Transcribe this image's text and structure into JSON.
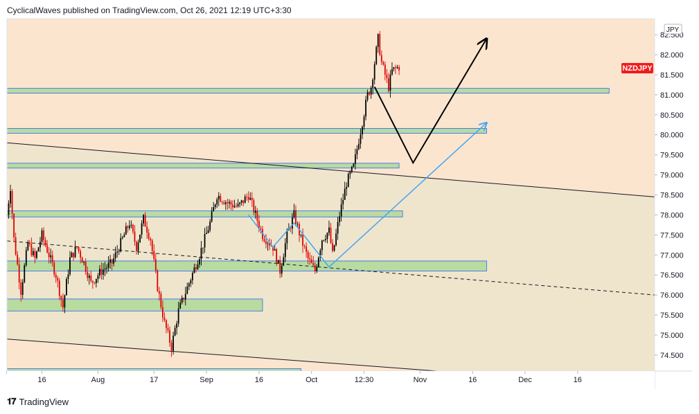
{
  "header": {
    "publisher": "CyclicalWaves published on TradingView.com, Oct 26, 2021 12:19 UTC+3:30"
  },
  "footer": {
    "brand": "TradingView",
    "logo_icon": "tradingview-logo-icon"
  },
  "colors": {
    "background_upper": "#fce5cf",
    "background_channel": "#efe5cc",
    "zone_fill": "#b8dba0",
    "zone_border": "#2962ff",
    "candle_up": "#000000",
    "candle_down": "#e00000",
    "arrow_black": "#000000",
    "arrow_blue": "#42a5f5",
    "badge_bg": "#f21b1b"
  },
  "chart_data": {
    "type": "candlestick",
    "symbol_label": "NZDJPY",
    "currency_label": "JPY",
    "y_ticks": [
      "82.500",
      "82.000",
      "81.500",
      "81.000",
      "80.500",
      "80.000",
      "79.500",
      "79.000",
      "78.500",
      "78.000",
      "77.500",
      "77.000",
      "76.500",
      "76.000",
      "75.500",
      "75.000",
      "74.500"
    ],
    "ylim": [
      74.1,
      82.9
    ],
    "x_ticks": [
      "16",
      "Aug",
      "17",
      "Sep",
      "16",
      "Oct",
      "12:30",
      "Nov",
      "16",
      "Dec",
      "16"
    ],
    "price_path": [
      [
        "2021-07-06",
        78.0
      ],
      [
        "2021-07-07",
        78.7
      ],
      [
        "2021-07-08",
        77.4
      ],
      [
        "2021-07-10",
        76.1
      ],
      [
        "2021-07-12",
        77.3
      ],
      [
        "2021-07-14",
        76.9
      ],
      [
        "2021-07-16",
        77.5
      ],
      [
        "2021-07-18",
        77.0
      ],
      [
        "2021-07-20",
        76.5
      ],
      [
        "2021-07-22",
        75.7
      ],
      [
        "2021-07-24",
        76.9
      ],
      [
        "2021-07-26",
        77.2
      ],
      [
        "2021-07-28",
        76.8
      ],
      [
        "2021-07-30",
        76.3
      ],
      [
        "2021-08-02",
        76.6
      ],
      [
        "2021-08-05",
        76.8
      ],
      [
        "2021-08-08",
        77.4
      ],
      [
        "2021-08-10",
        77.8
      ],
      [
        "2021-08-12",
        77.2
      ],
      [
        "2021-08-14",
        77.9
      ],
      [
        "2021-08-16",
        77.4
      ],
      [
        "2021-08-18",
        76.2
      ],
      [
        "2021-08-20",
        75.3
      ],
      [
        "2021-08-22",
        74.7
      ],
      [
        "2021-08-24",
        75.6
      ],
      [
        "2021-08-27",
        76.3
      ],
      [
        "2021-08-30",
        77.0
      ],
      [
        "2021-09-02",
        77.8
      ],
      [
        "2021-09-04",
        78.5
      ],
      [
        "2021-09-07",
        78.3
      ],
      [
        "2021-09-10",
        78.2
      ],
      [
        "2021-09-13",
        78.5
      ],
      [
        "2021-09-15",
        78.0
      ],
      [
        "2021-09-17",
        77.5
      ],
      [
        "2021-09-20",
        77.2
      ],
      [
        "2021-09-22",
        76.6
      ],
      [
        "2021-09-24",
        77.5
      ],
      [
        "2021-09-26",
        78.0
      ],
      [
        "2021-09-28",
        77.4
      ],
      [
        "2021-09-30",
        76.9
      ],
      [
        "2021-10-02",
        76.6
      ],
      [
        "2021-10-04",
        77.4
      ],
      [
        "2021-10-06",
        77.6
      ],
      [
        "2021-10-07",
        77.0
      ],
      [
        "2021-10-09",
        78.0
      ],
      [
        "2021-10-11",
        78.8
      ],
      [
        "2021-10-13",
        79.2
      ],
      [
        "2021-10-15",
        80.1
      ],
      [
        "2021-10-17",
        81.0
      ],
      [
        "2021-10-18",
        81.2
      ],
      [
        "2021-10-20",
        82.4
      ],
      [
        "2021-10-21",
        81.8
      ],
      [
        "2021-10-23",
        81.2
      ],
      [
        "2021-10-24",
        81.6
      ],
      [
        "2021-10-26",
        81.7
      ]
    ],
    "support_resistance_zones": [
      {
        "low": 81.05,
        "high": 81.15,
        "start": "2021-07-06",
        "end": "2021-12-25"
      },
      {
        "low": 80.05,
        "high": 80.15,
        "start": "2021-07-06",
        "end": "2021-11-20"
      },
      {
        "low": 79.18,
        "high": 79.28,
        "start": "2021-07-06",
        "end": "2021-10-26"
      },
      {
        "low": 77.95,
        "high": 78.1,
        "start": "2021-07-06",
        "end": "2021-10-27"
      },
      {
        "low": 76.6,
        "high": 76.85,
        "start": "2021-07-06",
        "end": "2021-11-20"
      },
      {
        "low": 75.6,
        "high": 75.9,
        "start": "2021-07-06",
        "end": "2021-09-17"
      },
      {
        "low": 74.05,
        "high": 74.15,
        "start": "2021-07-06",
        "end": "2021-09-28"
      }
    ],
    "trend_lines": [
      {
        "style": "solid",
        "points": [
          [
            "2021-07-06",
            79.8
          ],
          [
            "2022-01-07",
            78.45
          ]
        ]
      },
      {
        "style": "dashed",
        "points": [
          [
            "2021-07-06",
            77.35
          ],
          [
            "2022-01-07",
            76.0
          ]
        ]
      },
      {
        "style": "solid",
        "points": [
          [
            "2021-07-06",
            74.9
          ],
          [
            "2021-11-06",
            74.1
          ]
        ]
      }
    ],
    "projection_black": [
      [
        "2021-10-19",
        81.2
      ],
      [
        "2021-10-30",
        79.3
      ],
      [
        "2021-11-20",
        82.4
      ]
    ],
    "projection_blue": [
      [
        "2021-09-13",
        78.0
      ],
      [
        "2021-09-20",
        77.2
      ],
      [
        "2021-09-26",
        77.8
      ],
      [
        "2021-10-06",
        76.7
      ],
      [
        "2021-11-20",
        80.3
      ]
    ]
  }
}
